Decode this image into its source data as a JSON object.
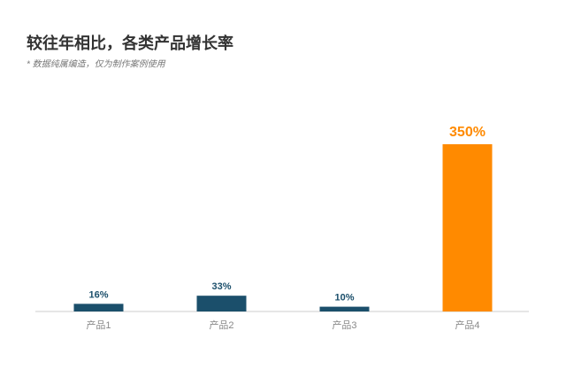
{
  "chart_data": {
    "type": "bar",
    "title": "较往年相比，各类产品增长率",
    "subtitle": "* 数据纯属编造，仅为制作案例使用",
    "categories": [
      "产品1",
      "产品2",
      "产品3",
      "产品4"
    ],
    "values": [
      16,
      33,
      10,
      350
    ],
    "value_labels": [
      "16%",
      "33%",
      "10%",
      "350%"
    ],
    "colors": [
      "#1b4f6b",
      "#1b4f6b",
      "#1b4f6b",
      "#ff8a00"
    ],
    "ylim": [
      0,
      350
    ]
  }
}
